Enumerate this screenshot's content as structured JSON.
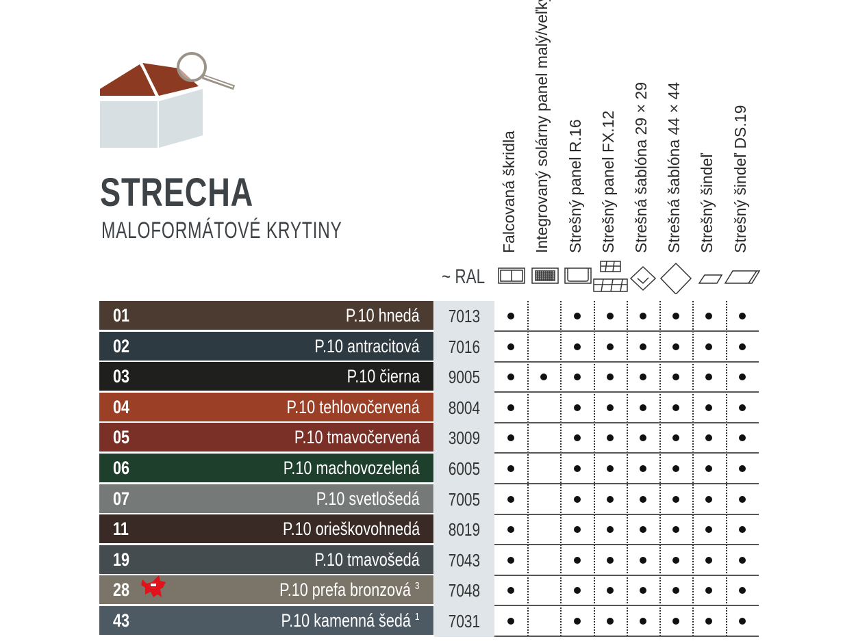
{
  "header": {
    "title": "STRECHA",
    "subtitle": "MALOFORMÁTOVÉ KRYTINY",
    "ral_label": "~ RAL"
  },
  "columns": [
    {
      "label": "Falcovaná škridla",
      "icon": "falcovana-skridla-icon"
    },
    {
      "label": "Integrovaný solárny panel malý/veľký",
      "icon": "solar-panel-icon"
    },
    {
      "label": "Strešný panel R.16",
      "icon": "panel-r16-icon"
    },
    {
      "label": "Strešný panel FX.12",
      "icon": "panel-fx12-icon"
    },
    {
      "label": "Strešná šablóna 29 × 29",
      "icon": "sablona-29-icon"
    },
    {
      "label": "Strešná šablóna 44 × 44",
      "icon": "sablona-44-icon"
    },
    {
      "label": "Strešný šindeľ",
      "icon": "sindel-icon"
    },
    {
      "label": "Strešný šindeľ DS.19",
      "icon": "sindel-ds19-icon"
    }
  ],
  "rows": [
    {
      "num": "01",
      "name": "P.10 hnedá",
      "sup": "",
      "ral": "7013",
      "color": "#4b3b31",
      "avail": [
        1,
        0,
        1,
        1,
        1,
        1,
        1,
        1
      ]
    },
    {
      "num": "02",
      "name": "P.10 antracitová",
      "sup": "",
      "ral": "7016",
      "color": "#2e3a41",
      "avail": [
        1,
        0,
        1,
        1,
        1,
        1,
        1,
        1
      ]
    },
    {
      "num": "03",
      "name": "P.10 čierna",
      "sup": "",
      "ral": "9005",
      "color": "#1f1f1d",
      "avail": [
        1,
        1,
        1,
        1,
        1,
        1,
        1,
        1
      ]
    },
    {
      "num": "04",
      "name": "P.10 tehlovočervená",
      "sup": "",
      "ral": "8004",
      "color": "#9b4027",
      "avail": [
        1,
        0,
        1,
        1,
        1,
        1,
        1,
        1
      ]
    },
    {
      "num": "05",
      "name": "P.10 tmavočervená",
      "sup": "",
      "ral": "3009",
      "color": "#7a2f27",
      "avail": [
        1,
        0,
        1,
        1,
        1,
        1,
        1,
        1
      ]
    },
    {
      "num": "06",
      "name": "P.10 machovozelená",
      "sup": "",
      "ral": "6005",
      "color": "#1d3f2c",
      "avail": [
        1,
        0,
        1,
        1,
        1,
        1,
        1,
        1
      ]
    },
    {
      "num": "07",
      "name": "P.10 svetlošedá",
      "sup": "",
      "ral": "7005",
      "color": "#757a78",
      "avail": [
        1,
        0,
        1,
        1,
        1,
        1,
        1,
        1
      ]
    },
    {
      "num": "11",
      "name": "P.10 orieškovohnedá",
      "sup": "",
      "ral": "8019",
      "color": "#3a2a25",
      "avail": [
        1,
        0,
        1,
        1,
        1,
        1,
        1,
        1
      ]
    },
    {
      "num": "19",
      "name": "P.10 tmavošedá",
      "sup": "",
      "ral": "7043",
      "color": "#444c50",
      "avail": [
        1,
        0,
        1,
        1,
        1,
        1,
        1,
        1
      ]
    },
    {
      "num": "28",
      "name": "P.10 prefa bronzová",
      "sup": "3",
      "ral": "7048",
      "color": "#7b7468",
      "avail": [
        1,
        0,
        1,
        1,
        1,
        1,
        1,
        1
      ],
      "badge": "bull-icon"
    },
    {
      "num": "43",
      "name": "P.10 kamenná šedá",
      "sup": "1",
      "ral": "7031",
      "color": "#4d5a63",
      "avail": [
        1,
        0,
        1,
        1,
        1,
        1,
        1,
        1
      ]
    }
  ]
}
